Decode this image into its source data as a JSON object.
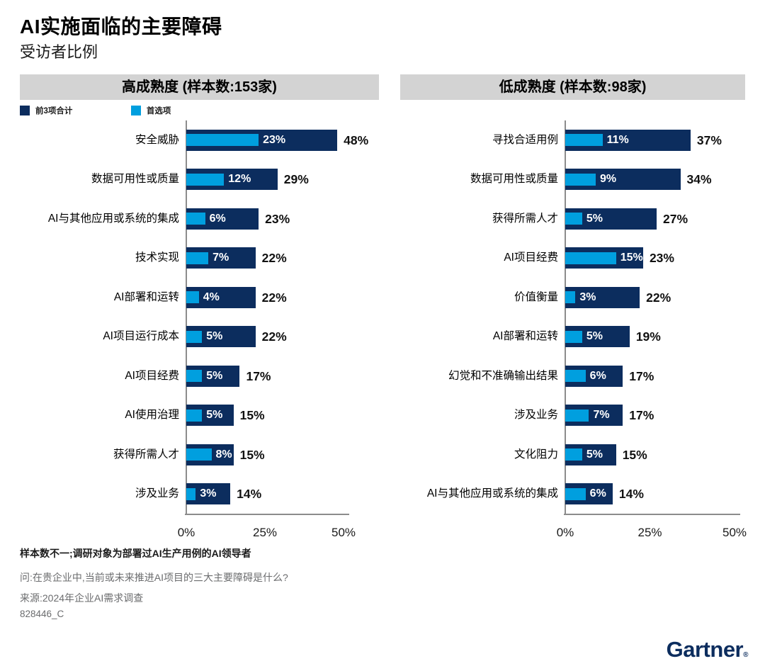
{
  "title": "AI实施面临的主要障碍",
  "subtitle": "受访者比例",
  "legend": {
    "top3": "前3项合计",
    "first": "首选项"
  },
  "colors": {
    "navy": "#0c2d5e",
    "blue": "#009fdf",
    "header_bg": "#d3d3d3",
    "axis": "#8c8c8c",
    "gray_text": "#6b6c6e"
  },
  "chart_data": [
    {
      "type": "bar",
      "orientation": "horizontal",
      "title": "高成熟度 (样本数:153家)",
      "categories": [
        "安全威胁",
        "数据可用性或质量",
        "AI与其他应用或系统的集成",
        "技术实现",
        "AI部署和运转",
        "AI项目运行成本",
        "AI项目经费",
        "AI使用治理",
        "获得所需人才",
        "涉及业务"
      ],
      "series": [
        {
          "name": "前3项合计",
          "values": [
            48,
            29,
            23,
            22,
            22,
            22,
            17,
            15,
            15,
            14
          ]
        },
        {
          "name": "首选项",
          "values": [
            23,
            12,
            6,
            7,
            4,
            5,
            5,
            5,
            8,
            3
          ]
        }
      ],
      "value_suffix": "%",
      "xlim": [
        0,
        50
      ],
      "xticks": [
        "0%",
        "25%",
        "50%"
      ],
      "grid": false,
      "legend_position": "top-left"
    },
    {
      "type": "bar",
      "orientation": "horizontal",
      "title": "低成熟度 (样本数:98家)",
      "categories": [
        "寻找合适用例",
        "数据可用性或质量",
        "获得所需人才",
        "AI项目经费",
        "价值衡量",
        "AI部署和运转",
        "幻觉和不准确输出结果",
        "涉及业务",
        "文化阻力",
        "AI与其他应用或系统的集成"
      ],
      "series": [
        {
          "name": "前3项合计",
          "values": [
            37,
            34,
            27,
            23,
            22,
            19,
            17,
            17,
            15,
            14
          ]
        },
        {
          "name": "首选项",
          "values": [
            11,
            9,
            5,
            15,
            3,
            5,
            6,
            7,
            5,
            6
          ]
        }
      ],
      "value_suffix": "%",
      "xlim": [
        0,
        50
      ],
      "xticks": [
        "0%",
        "25%",
        "50%"
      ],
      "grid": false,
      "legend_position": "none"
    }
  ],
  "footnotes": [
    "样本数不一;调研对象为部署过AI生产用例的AI领导者",
    "问:在贵企业中,当前或未来推进AI项目的三大主要障碍是什么?",
    "来源:2024年企业AI需求调查",
    "828446_C"
  ],
  "brand": "Gartner",
  "brand_reg": "®"
}
